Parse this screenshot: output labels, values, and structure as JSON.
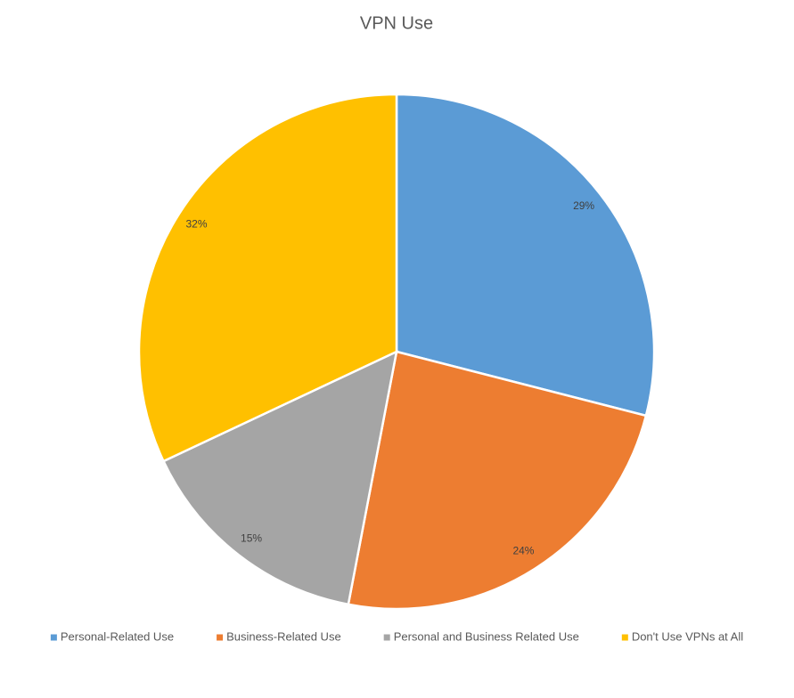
{
  "chart_data": {
    "type": "pie",
    "title": "VPN Use",
    "categories": [
      "Personal-Related Use",
      "Business-Related Use",
      "Personal and Business Related Use",
      "Don't Use VPNs at All"
    ],
    "values": [
      29,
      24,
      15,
      32
    ],
    "value_labels": [
      "29%",
      "24%",
      "15%",
      "32%"
    ],
    "colors": [
      "#5b9bd5",
      "#ed7d31",
      "#a5a5a5",
      "#ffc000"
    ],
    "legend": "bottom"
  }
}
